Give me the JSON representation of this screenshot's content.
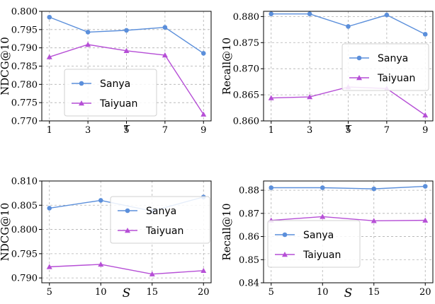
{
  "colors": {
    "sanya": "#5b8fdb",
    "taiyuan": "#b64fd6",
    "grid": "#b0b0b0"
  },
  "chart_data": [
    {
      "id": "p1",
      "type": "line",
      "x": [
        1,
        3,
        5,
        7,
        9
      ],
      "x_ticks": [
        "1",
        "3",
        "5",
        "7",
        "9"
      ],
      "xlabel": "τ",
      "ylabel": "NDCG@10",
      "ylim": [
        0.77,
        0.8
      ],
      "y_ticks": [
        "0.770",
        "0.775",
        "0.780",
        "0.785",
        "0.790",
        "0.795",
        "0.800"
      ],
      "grid": true,
      "legend": "bottom-left",
      "series": [
        {
          "name": "Sanya",
          "marker": "circle",
          "values": [
            0.7984,
            0.7943,
            0.7948,
            0.7956,
            0.7885
          ]
        },
        {
          "name": "Taiyuan",
          "marker": "triangle",
          "values": [
            0.7875,
            0.7909,
            0.7892,
            0.788,
            0.7718
          ]
        }
      ]
    },
    {
      "id": "p2",
      "type": "line",
      "x": [
        1,
        3,
        5,
        7,
        9
      ],
      "x_ticks": [
        "1",
        "3",
        "5",
        "7",
        "9"
      ],
      "xlabel": "τ",
      "ylabel": "Recall@10",
      "ylim": [
        0.86,
        0.881
      ],
      "y_ticks": [
        "0.860",
        "0.865",
        "0.870",
        "0.875",
        "0.880"
      ],
      "grid": true,
      "legend": "center-right",
      "series": [
        {
          "name": "Sanya",
          "marker": "circle",
          "values": [
            0.8805,
            0.8805,
            0.8781,
            0.8803,
            0.8766
          ]
        },
        {
          "name": "Taiyuan",
          "marker": "triangle",
          "values": [
            0.8644,
            0.8646,
            0.8665,
            0.8662,
            0.8611
          ]
        }
      ]
    },
    {
      "id": "p3",
      "type": "line",
      "x": [
        5,
        10,
        15,
        20
      ],
      "x_ticks": [
        "5",
        "10",
        "15",
        "20"
      ],
      "xlabel": "S",
      "ylabel": "NDCG@10",
      "ylim": [
        0.789,
        0.81
      ],
      "y_ticks": [
        "0.790",
        "0.795",
        "0.800",
        "0.805",
        "0.810"
      ],
      "grid": true,
      "legend": "center-right",
      "series": [
        {
          "name": "Sanya",
          "marker": "circle",
          "values": [
            0.8044,
            0.806,
            0.8038,
            0.8067
          ]
        },
        {
          "name": "Taiyuan",
          "marker": "triangle",
          "values": [
            0.7923,
            0.7928,
            0.7908,
            0.7915
          ]
        }
      ]
    },
    {
      "id": "p4",
      "type": "line",
      "x": [
        5,
        10,
        15,
        20
      ],
      "x_ticks": [
        "5",
        "10",
        "15",
        "20"
      ],
      "xlabel": "S",
      "ylabel": "Recall@10",
      "ylim": [
        0.84,
        0.884
      ],
      "y_ticks": [
        "0.84",
        "0.85",
        "0.86",
        "0.87",
        "0.88"
      ],
      "grid": true,
      "legend": "bottom-left",
      "series": [
        {
          "name": "Sanya",
          "marker": "circle",
          "values": [
            0.8811,
            0.8811,
            0.8806,
            0.8817
          ]
        },
        {
          "name": "Taiyuan",
          "marker": "triangle",
          "values": [
            0.867,
            0.8686,
            0.8668,
            0.867
          ]
        }
      ]
    }
  ]
}
